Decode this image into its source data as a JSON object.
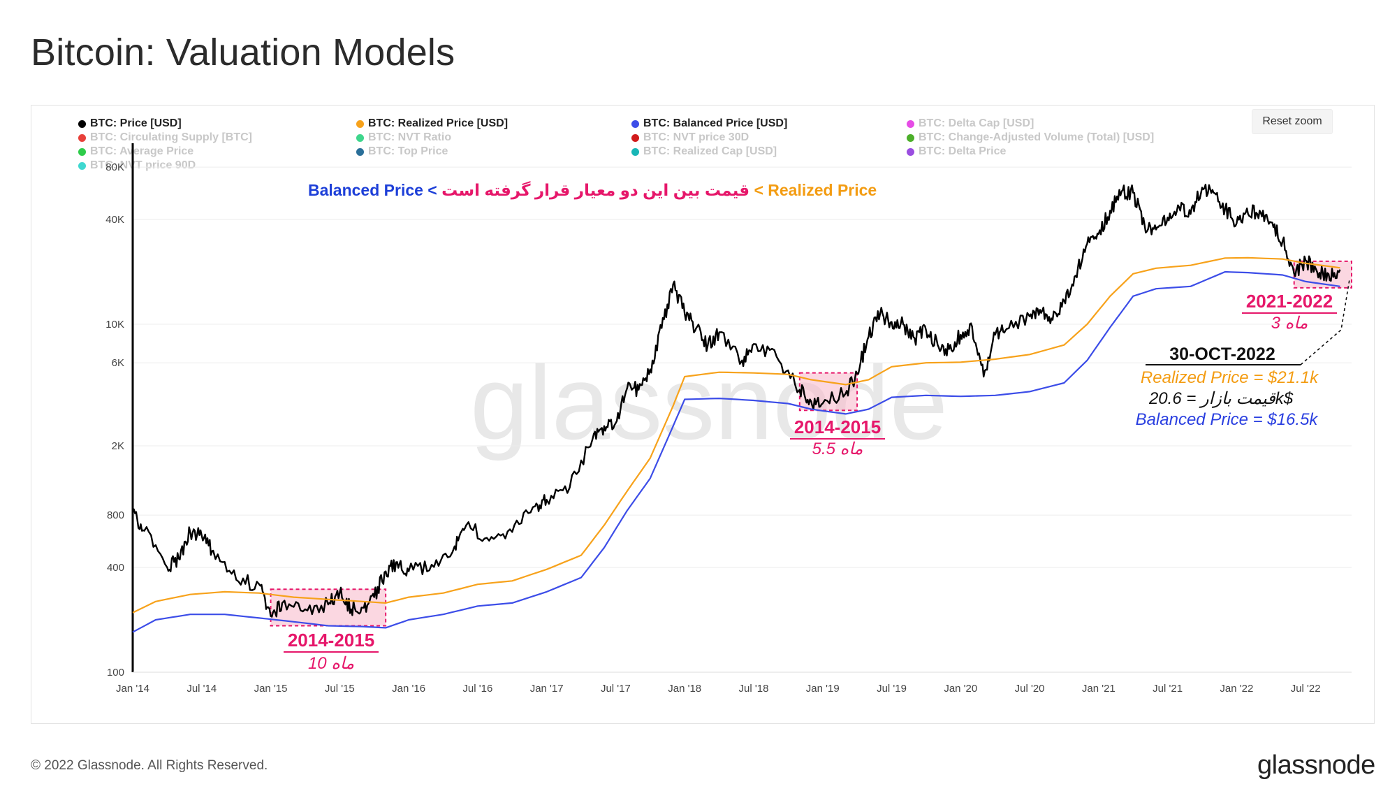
{
  "page": {
    "title": "Bitcoin: Valuation Models",
    "footer": "© 2022 Glassnode. All Rights Reserved.",
    "brand": "glassnode",
    "watermark": "glassnode",
    "reset_zoom": "Reset zoom"
  },
  "legend": [
    {
      "label": "BTC: Price [USD]",
      "color": "#000000",
      "active": true
    },
    {
      "label": "BTC: Realized Price [USD]",
      "color": "#f7a21b",
      "active": true
    },
    {
      "label": "BTC: Balanced Price [USD]",
      "color": "#3c4de8",
      "active": true
    },
    {
      "label": "BTC: Delta Cap [USD]",
      "color": "#e64ce6",
      "active": false
    },
    {
      "label": "BTC: Circulating Supply [BTC]",
      "color": "#e8403a",
      "active": false
    },
    {
      "label": "BTC: NVT Ratio",
      "color": "#3ed68c",
      "active": false
    },
    {
      "label": "BTC: NVT price 30D",
      "color": "#d11a1a",
      "active": false
    },
    {
      "label": "BTC: Change-Adjusted Volume (Total) [USD]",
      "color": "#4caf2a",
      "active": false
    },
    {
      "label": "BTC: Average Price",
      "color": "#2ecc4a",
      "active": false
    },
    {
      "label": "BTC: Top Price",
      "color": "#2a6f99",
      "active": false
    },
    {
      "label": "BTC: Realized Cap [USD]",
      "color": "#18b6b6",
      "active": false
    },
    {
      "label": "BTC: Delta Price",
      "color": "#9a4ee0",
      "active": false
    },
    {
      "label": "BTC: NVT price 90D",
      "color": "#3fd8d0",
      "active": false
    }
  ],
  "chart_data": {
    "type": "line",
    "yscale": "log",
    "ylim": [
      100,
      100000
    ],
    "xlim": [
      "2014-01",
      "2022-11"
    ],
    "y_ticks": [
      "80K",
      "40K",
      "10K",
      "6K",
      "2K",
      "800",
      "400",
      "100"
    ],
    "y_tick_values": [
      80000,
      40000,
      10000,
      6000,
      2000,
      800,
      400,
      100
    ],
    "x_ticks": [
      "Jan '14",
      "Jul '14",
      "Jan '15",
      "Jul '15",
      "Jan '16",
      "Jul '16",
      "Jan '17",
      "Jul '17",
      "Jan '18",
      "Jul '18",
      "Jan '19",
      "Jul '19",
      "Jan '20",
      "Jul '20",
      "Jan '21",
      "Jul '21",
      "Jan '22",
      "Jul '22"
    ],
    "x_tick_values": [
      "2014-01",
      "2014-07",
      "2015-01",
      "2015-07",
      "2016-01",
      "2016-07",
      "2017-01",
      "2017-07",
      "2018-01",
      "2018-07",
      "2019-01",
      "2019-07",
      "2020-01",
      "2020-07",
      "2021-01",
      "2021-07",
      "2022-01",
      "2022-07"
    ],
    "series": [
      {
        "name": "BTC: Price [USD]",
        "color": "#000000",
        "points": [
          [
            "2014-01",
            850
          ],
          [
            "2014-02",
            650
          ],
          [
            "2014-04",
            400
          ],
          [
            "2014-05",
            450
          ],
          [
            "2014-06",
            640
          ],
          [
            "2014-07",
            610
          ],
          [
            "2014-08",
            500
          ],
          [
            "2014-10",
            340
          ],
          [
            "2014-12",
            320
          ],
          [
            "2015-01",
            210
          ],
          [
            "2015-02",
            250
          ],
          [
            "2015-04",
            230
          ],
          [
            "2015-06",
            245
          ],
          [
            "2015-07",
            285
          ],
          [
            "2015-08",
            230
          ],
          [
            "2015-09",
            235
          ],
          [
            "2015-10",
            270
          ],
          [
            "2015-11",
            380
          ],
          [
            "2015-12",
            430
          ],
          [
            "2016-01",
            380
          ],
          [
            "2016-03",
            415
          ],
          [
            "2016-05",
            530
          ],
          [
            "2016-06",
            700
          ],
          [
            "2016-08",
            570
          ],
          [
            "2016-10",
            640
          ],
          [
            "2016-12",
            900
          ],
          [
            "2017-01",
            980
          ],
          [
            "2017-03",
            1150
          ],
          [
            "2017-05",
            2200
          ],
          [
            "2017-06",
            2600
          ],
          [
            "2017-07",
            2700
          ],
          [
            "2017-08",
            4300
          ],
          [
            "2017-09",
            4200
          ],
          [
            "2017-10",
            5500
          ],
          [
            "2017-11",
            9500
          ],
          [
            "2017-12",
            17000
          ],
          [
            "2018-01",
            11500
          ],
          [
            "2018-02",
            9500
          ],
          [
            "2018-03",
            7500
          ],
          [
            "2018-04",
            9000
          ],
          [
            "2018-06",
            6200
          ],
          [
            "2018-07",
            7700
          ],
          [
            "2018-09",
            6500
          ],
          [
            "2018-11",
            4200
          ],
          [
            "2018-12",
            3600
          ],
          [
            "2019-01",
            3500
          ],
          [
            "2019-03",
            4000
          ],
          [
            "2019-04",
            5200
          ],
          [
            "2019-05",
            8500
          ],
          [
            "2019-06",
            11500
          ],
          [
            "2019-07",
            10300
          ],
          [
            "2019-08",
            10000
          ],
          [
            "2019-09",
            8300
          ],
          [
            "2019-10",
            9200
          ],
          [
            "2019-11",
            7600
          ],
          [
            "2019-12",
            7200
          ],
          [
            "2020-01",
            8700
          ],
          [
            "2020-02",
            9700
          ],
          [
            "2020-03",
            5000
          ],
          [
            "2020-04",
            8700
          ],
          [
            "2020-05",
            9400
          ],
          [
            "2020-07",
            11100
          ],
          [
            "2020-08",
            11600
          ],
          [
            "2020-09",
            10600
          ],
          [
            "2020-10",
            13700
          ],
          [
            "2020-11",
            19000
          ],
          [
            "2020-12",
            29000
          ],
          [
            "2021-01",
            33000
          ],
          [
            "2021-02",
            45000
          ],
          [
            "2021-03",
            58000
          ],
          [
            "2021-04",
            57000
          ],
          [
            "2021-05",
            37000
          ],
          [
            "2021-06",
            35000
          ],
          [
            "2021-07",
            41000
          ],
          [
            "2021-08",
            47000
          ],
          [
            "2021-09",
            43000
          ],
          [
            "2021-10",
            61000
          ],
          [
            "2021-11",
            57000
          ],
          [
            "2021-12",
            46000
          ],
          [
            "2022-01",
            38000
          ],
          [
            "2022-02",
            43000
          ],
          [
            "2022-03",
            45000
          ],
          [
            "2022-04",
            38500
          ],
          [
            "2022-05",
            30000
          ],
          [
            "2022-06",
            19500
          ],
          [
            "2022-07",
            23300
          ],
          [
            "2022-08",
            20000
          ],
          [
            "2022-09",
            19400
          ],
          [
            "2022-10",
            20600
          ]
        ]
      },
      {
        "name": "BTC: Realized Price [USD]",
        "color": "#f7a21b",
        "points": [
          [
            "2014-01",
            220
          ],
          [
            "2014-03",
            255
          ],
          [
            "2014-06",
            280
          ],
          [
            "2014-09",
            290
          ],
          [
            "2014-12",
            285
          ],
          [
            "2015-03",
            270
          ],
          [
            "2015-06",
            262
          ],
          [
            "2015-09",
            255
          ],
          [
            "2015-11",
            250
          ],
          [
            "2016-01",
            270
          ],
          [
            "2016-04",
            285
          ],
          [
            "2016-07",
            320
          ],
          [
            "2016-10",
            335
          ],
          [
            "2017-01",
            390
          ],
          [
            "2017-04",
            470
          ],
          [
            "2017-06",
            700
          ],
          [
            "2017-08",
            1100
          ],
          [
            "2017-10",
            1700
          ],
          [
            "2017-12",
            3400
          ],
          [
            "2018-01",
            5000
          ],
          [
            "2018-04",
            5300
          ],
          [
            "2018-07",
            5250
          ],
          [
            "2018-10",
            5150
          ],
          [
            "2018-12",
            4800
          ],
          [
            "2019-03",
            4500
          ],
          [
            "2019-05",
            4800
          ],
          [
            "2019-07",
            5700
          ],
          [
            "2019-10",
            6000
          ],
          [
            "2020-01",
            6050
          ],
          [
            "2020-04",
            6300
          ],
          [
            "2020-07",
            6700
          ],
          [
            "2020-10",
            7600
          ],
          [
            "2020-12",
            10000
          ],
          [
            "2021-02",
            14500
          ],
          [
            "2021-04",
            19500
          ],
          [
            "2021-06",
            21000
          ],
          [
            "2021-09",
            21800
          ],
          [
            "2021-12",
            24000
          ],
          [
            "2022-02",
            24100
          ],
          [
            "2022-05",
            23700
          ],
          [
            "2022-07",
            22400
          ],
          [
            "2022-10",
            21100
          ]
        ]
      },
      {
        "name": "BTC: Balanced Price [USD]",
        "color": "#3c4de8",
        "points": [
          [
            "2014-01",
            170
          ],
          [
            "2014-03",
            200
          ],
          [
            "2014-06",
            215
          ],
          [
            "2014-09",
            215
          ],
          [
            "2014-12",
            205
          ],
          [
            "2015-03",
            195
          ],
          [
            "2015-06",
            185
          ],
          [
            "2015-09",
            183
          ],
          [
            "2015-11",
            180
          ],
          [
            "2016-01",
            200
          ],
          [
            "2016-04",
            215
          ],
          [
            "2016-07",
            240
          ],
          [
            "2016-10",
            250
          ],
          [
            "2017-01",
            290
          ],
          [
            "2017-04",
            350
          ],
          [
            "2017-06",
            520
          ],
          [
            "2017-08",
            850
          ],
          [
            "2017-10",
            1300
          ],
          [
            "2017-12",
            2600
          ],
          [
            "2018-01",
            3700
          ],
          [
            "2018-04",
            3750
          ],
          [
            "2018-07",
            3650
          ],
          [
            "2018-10",
            3500
          ],
          [
            "2018-12",
            3250
          ],
          [
            "2019-03",
            3050
          ],
          [
            "2019-05",
            3250
          ],
          [
            "2019-07",
            3800
          ],
          [
            "2019-10",
            3900
          ],
          [
            "2020-01",
            3850
          ],
          [
            "2020-04",
            3900
          ],
          [
            "2020-07",
            4100
          ],
          [
            "2020-10",
            4600
          ],
          [
            "2020-12",
            6200
          ],
          [
            "2021-02",
            9600
          ],
          [
            "2021-04",
            14500
          ],
          [
            "2021-06",
            16000
          ],
          [
            "2021-09",
            16500
          ],
          [
            "2021-12",
            20000
          ],
          [
            "2022-02",
            19800
          ],
          [
            "2022-05",
            19200
          ],
          [
            "2022-07",
            17600
          ],
          [
            "2022-10",
            16500
          ]
        ]
      }
    ],
    "highlights": [
      {
        "x0": "2015-01",
        "x1": "2015-11",
        "y0": 185,
        "y1": 300,
        "label": "2014-2015",
        "sub": "10 ماه"
      },
      {
        "x0": "2018-11",
        "x1": "2019-04",
        "y0": 3200,
        "y1": 5250,
        "label": "2014-2015",
        "sub": "5.5 ماه"
      },
      {
        "x0": "2022-06",
        "x1": "2022-11",
        "y0": 16200,
        "y1": 23000,
        "label": "2021-2022",
        "sub": "3 ماه"
      }
    ],
    "header_annotation": {
      "part1": "Balanced Price <",
      "part2": " قیمت بین این دو معیار قرار گرفته است ",
      "part3": "< Realized Price"
    },
    "callout": {
      "date": "30-OCT-2022",
      "realized": "Realized Price = $21.1k",
      "market": "قیمت بازار  = 20.6k$",
      "balanced": "Balanced Price = $16.5k"
    }
  }
}
